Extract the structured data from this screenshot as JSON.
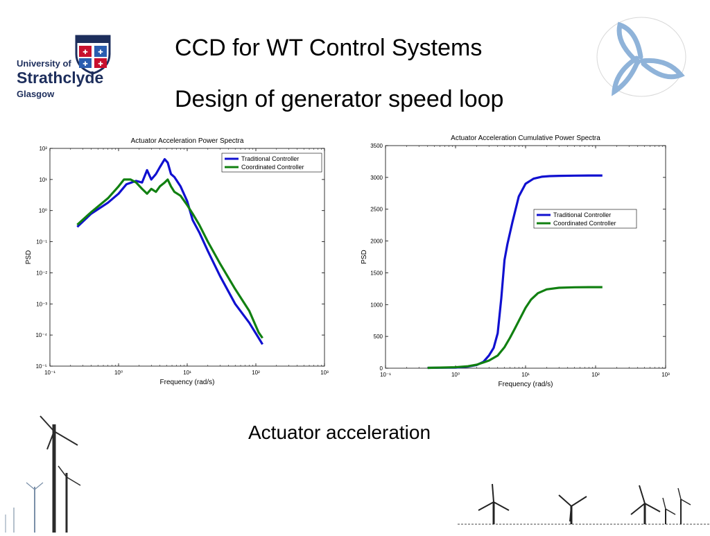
{
  "slide": {
    "title_line1": "CCD for WT Control Systems",
    "title_line2": "Design of generator speed loop",
    "caption": "Actuator acceleration"
  },
  "logo": {
    "line1": "University of",
    "line2": "Strathclyde",
    "line3": "Glasgow",
    "color": "#1d2e5c"
  },
  "colors": {
    "traditional": "#1010d0",
    "coordinated": "#118011",
    "emblem": "#8fb3d9"
  },
  "chart_data": [
    {
      "type": "line",
      "title": "Actuator Acceleration Power Spectra",
      "xlabel": "Frequency (rad/s)",
      "ylabel": "PSD",
      "xscale": "log",
      "yscale": "log",
      "xlim": [
        0.1,
        1000
      ],
      "ylim": [
        1e-05,
        100
      ],
      "xticks": [
        "10⁻¹",
        "10⁰",
        "10¹",
        "10²",
        "10³"
      ],
      "yticks": [
        "10⁻⁵",
        "10⁻⁴",
        "10⁻³",
        "10⁻²",
        "10⁻¹",
        "10⁰",
        "10¹",
        "10²"
      ],
      "legend_position": "top-right",
      "grid": false,
      "series": [
        {
          "name": "Traditional Controller",
          "x": [
            0.25,
            0.4,
            0.7,
            1.0,
            1.3,
            1.8,
            2.2,
            2.6,
            3.0,
            3.5,
            4.0,
            4.7,
            5.2,
            5.8,
            6.5,
            8,
            10,
            12,
            15,
            20,
            30,
            50,
            80,
            110,
            125
          ],
          "y": [
            0.3,
            0.8,
            1.8,
            3.5,
            7,
            9,
            8,
            20,
            10,
            15,
            25,
            45,
            35,
            15,
            12,
            6,
            2,
            0.5,
            0.2,
            0.05,
            0.008,
            0.001,
            0.00025,
            8e-05,
            5e-05
          ]
        },
        {
          "name": "Coordinated Controller",
          "x": [
            0.25,
            0.4,
            0.7,
            1.0,
            1.2,
            1.5,
            1.8,
            2.2,
            2.6,
            3.0,
            3.5,
            4.0,
            4.7,
            5.2,
            5.8,
            6.5,
            8,
            10,
            12,
            15,
            20,
            30,
            50,
            80,
            110,
            125
          ],
          "y": [
            0.35,
            0.9,
            2.5,
            6,
            10,
            10,
            8,
            5,
            3.5,
            5,
            4,
            6,
            8,
            10,
            6,
            4,
            3,
            1.5,
            0.8,
            0.35,
            0.1,
            0.02,
            0.003,
            0.0006,
            0.00012,
            8e-05
          ]
        }
      ]
    },
    {
      "type": "line",
      "title": "Actuator Acceleration Cumulative Power Spectra",
      "xlabel": "Frequency (rad/s)",
      "ylabel": "PSD",
      "xscale": "log",
      "yscale": "linear",
      "xlim": [
        0.1,
        1000
      ],
      "ylim": [
        0,
        3500
      ],
      "xticks": [
        "10⁻¹",
        "10⁰",
        "10¹",
        "10²",
        "10³"
      ],
      "yticks": [
        "0",
        "500",
        "1000",
        "1500",
        "2000",
        "2500",
        "3000",
        "3500"
      ],
      "legend_position": "center-right",
      "grid": false,
      "series": [
        {
          "name": "Traditional Controller",
          "x": [
            0.4,
            1.0,
            1.5,
            2.0,
            2.5,
            3.0,
            3.5,
            4.0,
            4.5,
            5.0,
            5.5,
            6.5,
            8,
            10,
            13,
            17,
            22,
            30,
            50,
            80,
            125
          ],
          "y": [
            5,
            10,
            25,
            50,
            100,
            200,
            320,
            550,
            1100,
            1700,
            1950,
            2300,
            2700,
            2900,
            2980,
            3010,
            3020,
            3025,
            3028,
            3030,
            3030
          ]
        },
        {
          "name": "Coordinated Controller",
          "x": [
            0.4,
            1.0,
            1.5,
            2.0,
            2.5,
            3.0,
            4.0,
            5.0,
            6.0,
            7.0,
            8.5,
            10,
            12,
            15,
            20,
            30,
            50,
            80,
            125
          ],
          "y": [
            5,
            15,
            30,
            55,
            90,
            120,
            200,
            330,
            480,
            620,
            800,
            950,
            1080,
            1180,
            1240,
            1265,
            1272,
            1275,
            1275
          ]
        }
      ]
    }
  ]
}
